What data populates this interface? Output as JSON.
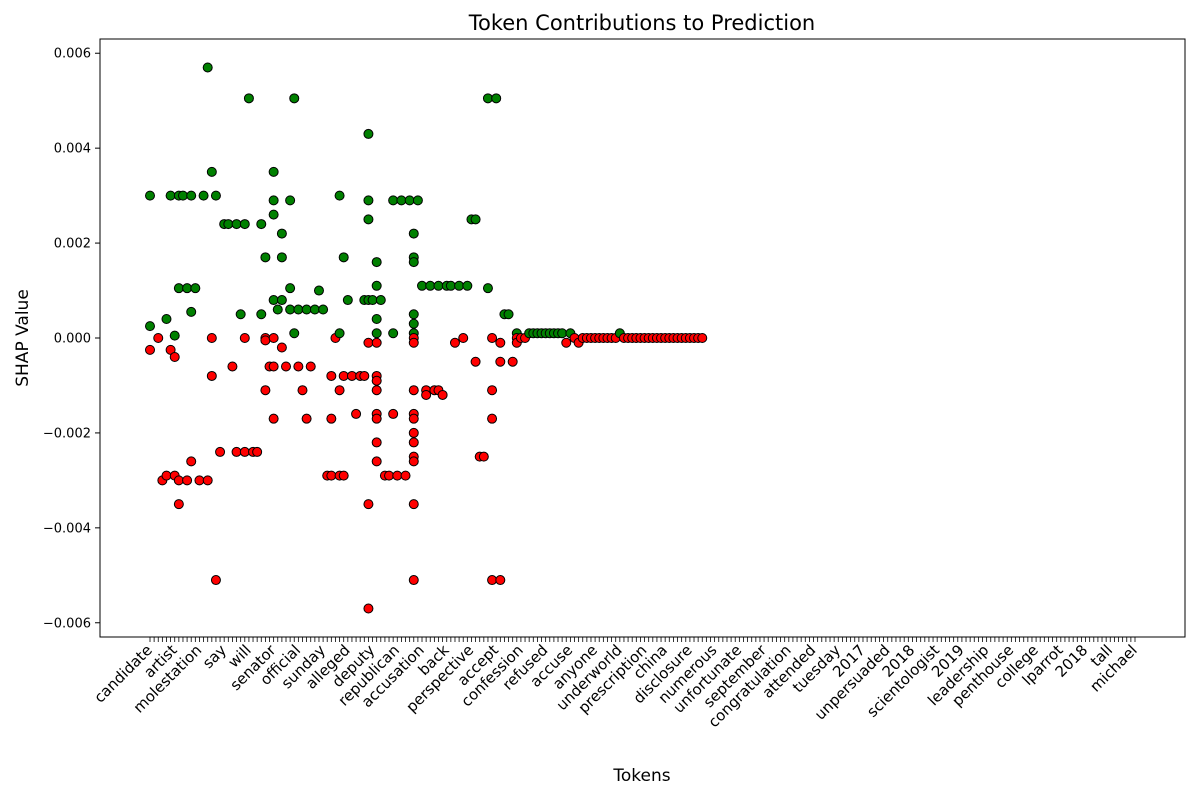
{
  "chart_data": {
    "type": "scatter",
    "title": "Token Contributions to Prediction",
    "xlabel": "Tokens",
    "ylabel": "SHAP Value",
    "ylim": [
      -0.0063,
      0.0063
    ],
    "yticks": [
      -0.006,
      -0.004,
      -0.002,
      0.0,
      0.002,
      0.004,
      0.006
    ],
    "ytick_labels": [
      "−0.006",
      "−0.004",
      "−0.002",
      "0.000",
      "0.002",
      "0.004",
      "0.006"
    ],
    "grid": false,
    "positive_color": "#008000",
    "negative_color": "#ff0000",
    "marker_edge_color": "#000000",
    "tick_labels_note": "x tick labels are dense and overlapping; only legible ones are listed",
    "xtick_labels": [
      "candidate",
      "artist",
      "molestation",
      "say",
      "will",
      "senator",
      "official",
      "sunday",
      "alleged",
      "deputy",
      "republican",
      "accusation",
      "back",
      "perspective",
      "accept",
      "confession",
      "refused",
      "accuse",
      "anyone",
      "underworld",
      "prescription",
      "china",
      "disclosure",
      "numerous",
      "unfortunate",
      "september",
      "congratulation",
      "attended",
      "tuesday",
      "2017",
      "unpersuaded",
      "2018",
      "scientologist",
      "2019",
      "leadership",
      "penthouse",
      "college",
      "lparrot",
      "2018",
      "tall",
      "michael"
    ],
    "n_tokens": 240,
    "points": [
      [
        0,
        0.00025
      ],
      [
        0,
        0.003
      ],
      [
        0,
        -0.00025
      ],
      [
        2,
        0
      ],
      [
        3,
        -0.003
      ],
      [
        4,
        -0.0029
      ],
      [
        4,
        0.0004
      ],
      [
        5,
        0.003
      ],
      [
        5,
        -0.00025
      ],
      [
        6,
        -0.0029
      ],
      [
        6,
        5e-05
      ],
      [
        6,
        -0.0004
      ],
      [
        7,
        -0.003
      ],
      [
        7,
        -0.0035
      ],
      [
        7,
        0.003
      ],
      [
        7,
        0.00105
      ],
      [
        8,
        0.003
      ],
      [
        9,
        -0.003
      ],
      [
        9,
        0.00105
      ],
      [
        10,
        0.003
      ],
      [
        10,
        -0.0026
      ],
      [
        10,
        0.00055
      ],
      [
        11,
        0.00105
      ],
      [
        12,
        -0.003
      ],
      [
        13,
        0.003
      ],
      [
        14,
        -0.003
      ],
      [
        14,
        0.0057
      ],
      [
        15,
        0.0035
      ],
      [
        15,
        0
      ],
      [
        15,
        -0.0008
      ],
      [
        16,
        0.003
      ],
      [
        16,
        -0.0051
      ],
      [
        17,
        -0.0024
      ],
      [
        18,
        0.0024
      ],
      [
        19,
        0.0024
      ],
      [
        20,
        -0.0006
      ],
      [
        21,
        -0.0024
      ],
      [
        21,
        0.0024
      ],
      [
        22,
        0.0005
      ],
      [
        23,
        -0.0024
      ],
      [
        23,
        0
      ],
      [
        23,
        0.0024
      ],
      [
        24,
        0.00505
      ],
      [
        25,
        -0.0024
      ],
      [
        26,
        -0.0024
      ],
      [
        27,
        0.0005
      ],
      [
        27,
        0.0024
      ],
      [
        28,
        0.0017
      ],
      [
        28,
        0
      ],
      [
        28,
        -5e-05
      ],
      [
        28,
        -0.0011
      ],
      [
        29,
        -0.0006
      ],
      [
        30,
        0.0035
      ],
      [
        30,
        0.0029
      ],
      [
        30,
        0.0026
      ],
      [
        30,
        0.0008
      ],
      [
        30,
        0
      ],
      [
        30,
        -0.0006
      ],
      [
        30,
        -0.0017
      ],
      [
        31,
        0.0006
      ],
      [
        32,
        0.0022
      ],
      [
        32,
        0.0008
      ],
      [
        32,
        0.0017
      ],
      [
        32,
        -0.0002
      ],
      [
        33,
        -0.0006
      ],
      [
        34,
        0.0029
      ],
      [
        34,
        0.00105
      ],
      [
        34,
        0.0006
      ],
      [
        35,
        0.00505
      ],
      [
        35,
        0.0001
      ],
      [
        36,
        0.0006
      ],
      [
        36,
        -0.0006
      ],
      [
        37,
        -0.0011
      ],
      [
        38,
        0.0006
      ],
      [
        38,
        -0.0017
      ],
      [
        39,
        -0.0006
      ],
      [
        40,
        0.0006
      ],
      [
        41,
        0.001
      ],
      [
        42,
        0.0006
      ],
      [
        43,
        -0.0029
      ],
      [
        44,
        -0.0017
      ],
      [
        44,
        -0.0029
      ],
      [
        44,
        -0.0008
      ],
      [
        45,
        0
      ],
      [
        46,
        0.0001
      ],
      [
        46,
        0.003
      ],
      [
        46,
        -0.0011
      ],
      [
        46,
        -0.0029
      ],
      [
        47,
        -0.0029
      ],
      [
        47,
        -0.0008
      ],
      [
        47,
        0.0017
      ],
      [
        48,
        0.0008
      ],
      [
        49,
        -0.0008
      ],
      [
        50,
        -0.0016
      ],
      [
        51,
        -0.0008
      ],
      [
        52,
        0.0008
      ],
      [
        52,
        -0.0008
      ],
      [
        53,
        -0.0035
      ],
      [
        53,
        0.0043
      ],
      [
        53,
        0.0029
      ],
      [
        53,
        0.0025
      ],
      [
        53,
        0.0008
      ],
      [
        53,
        -0.0001
      ],
      [
        53,
        -0.0057
      ],
      [
        54,
        0.0008
      ],
      [
        55,
        0.0016
      ],
      [
        55,
        0.0011
      ],
      [
        55,
        0.0004
      ],
      [
        55,
        0.0001
      ],
      [
        55,
        -0.0001
      ],
      [
        55,
        -0.0008
      ],
      [
        55,
        -0.0009
      ],
      [
        55,
        -0.0011
      ],
      [
        55,
        -0.0016
      ],
      [
        55,
        -0.0017
      ],
      [
        55,
        -0.0022
      ],
      [
        55,
        -0.0026
      ],
      [
        56,
        0.0008
      ],
      [
        57,
        -0.0029
      ],
      [
        58,
        -0.0029
      ],
      [
        59,
        -0.0016
      ],
      [
        59,
        0.0029
      ],
      [
        59,
        0.0001
      ],
      [
        60,
        -0.0029
      ],
      [
        61,
        0.0029
      ],
      [
        62,
        -0.0029
      ],
      [
        63,
        0.0029
      ],
      [
        64,
        0.0022
      ],
      [
        64,
        0.0017
      ],
      [
        64,
        0.0016
      ],
      [
        64,
        0.0005
      ],
      [
        64,
        0.0003
      ],
      [
        64,
        0.0001
      ],
      [
        64,
        0
      ],
      [
        64,
        -0.0001
      ],
      [
        64,
        -0.0011
      ],
      [
        64,
        -0.0016
      ],
      [
        64,
        -0.0017
      ],
      [
        64,
        -0.002
      ],
      [
        64,
        -0.0022
      ],
      [
        64,
        -0.0025
      ],
      [
        64,
        -0.0026
      ],
      [
        64,
        -0.0035
      ],
      [
        64,
        -0.0051
      ],
      [
        65,
        0.0029
      ],
      [
        66,
        0.0011
      ],
      [
        67,
        -0.0011
      ],
      [
        67,
        -0.0012
      ],
      [
        68,
        0.0011
      ],
      [
        69,
        -0.0011
      ],
      [
        70,
        0.0011
      ],
      [
        70,
        -0.0011
      ],
      [
        71,
        -0.0012
      ],
      [
        72,
        0.0011
      ],
      [
        73,
        0.0011
      ],
      [
        74,
        -0.0001
      ],
      [
        75,
        0.0011
      ],
      [
        76,
        0
      ],
      [
        77,
        0.0011
      ],
      [
        78,
        0.0025
      ],
      [
        79,
        -0.0005
      ],
      [
        79,
        0.0025
      ],
      [
        80,
        -0.0025
      ],
      [
        81,
        -0.0025
      ],
      [
        82,
        0.00505
      ],
      [
        82,
        0.00105
      ],
      [
        83,
        0
      ],
      [
        83,
        -0.0011
      ],
      [
        83,
        -0.0017
      ],
      [
        83,
        -0.0051
      ],
      [
        84,
        0.00505
      ],
      [
        85,
        -0.0051
      ],
      [
        85,
        -0.0005
      ],
      [
        85,
        -0.0001
      ],
      [
        86,
        0.0005
      ],
      [
        87,
        0.0005
      ],
      [
        88,
        -0.0005
      ],
      [
        89,
        0.0001
      ],
      [
        89,
        0
      ],
      [
        89,
        -0.0001
      ],
      [
        90,
        0
      ],
      [
        91,
        0
      ],
      [
        92,
        0.0001
      ],
      [
        93,
        0.0001
      ],
      [
        94,
        0.0001
      ],
      [
        95,
        0.0001
      ],
      [
        96,
        0.0001
      ],
      [
        97,
        0.0001
      ],
      [
        98,
        0.0001
      ],
      [
        99,
        0.0001
      ],
      [
        100,
        0.0001
      ],
      [
        101,
        -0.0001
      ],
      [
        102,
        0.0001
      ],
      [
        103,
        0
      ],
      [
        104,
        -0.0001
      ],
      [
        105,
        0
      ],
      [
        106,
        0
      ],
      [
        107,
        0
      ],
      [
        108,
        0
      ],
      [
        109,
        0
      ],
      [
        110,
        0
      ],
      [
        111,
        0
      ],
      [
        112,
        0
      ],
      [
        113,
        0
      ],
      [
        114,
        0.0001
      ],
      [
        115,
        0
      ],
      [
        116,
        0
      ],
      [
        117,
        0
      ],
      [
        118,
        0
      ],
      [
        119,
        0
      ],
      [
        120,
        0
      ],
      [
        121,
        0
      ],
      [
        122,
        0
      ],
      [
        123,
        0
      ],
      [
        124,
        0
      ],
      [
        125,
        0
      ],
      [
        126,
        0
      ],
      [
        127,
        0
      ],
      [
        128,
        0
      ],
      [
        129,
        0
      ],
      [
        130,
        0
      ],
      [
        131,
        0
      ],
      [
        132,
        0
      ],
      [
        133,
        0
      ],
      [
        134,
        0
      ]
    ]
  }
}
